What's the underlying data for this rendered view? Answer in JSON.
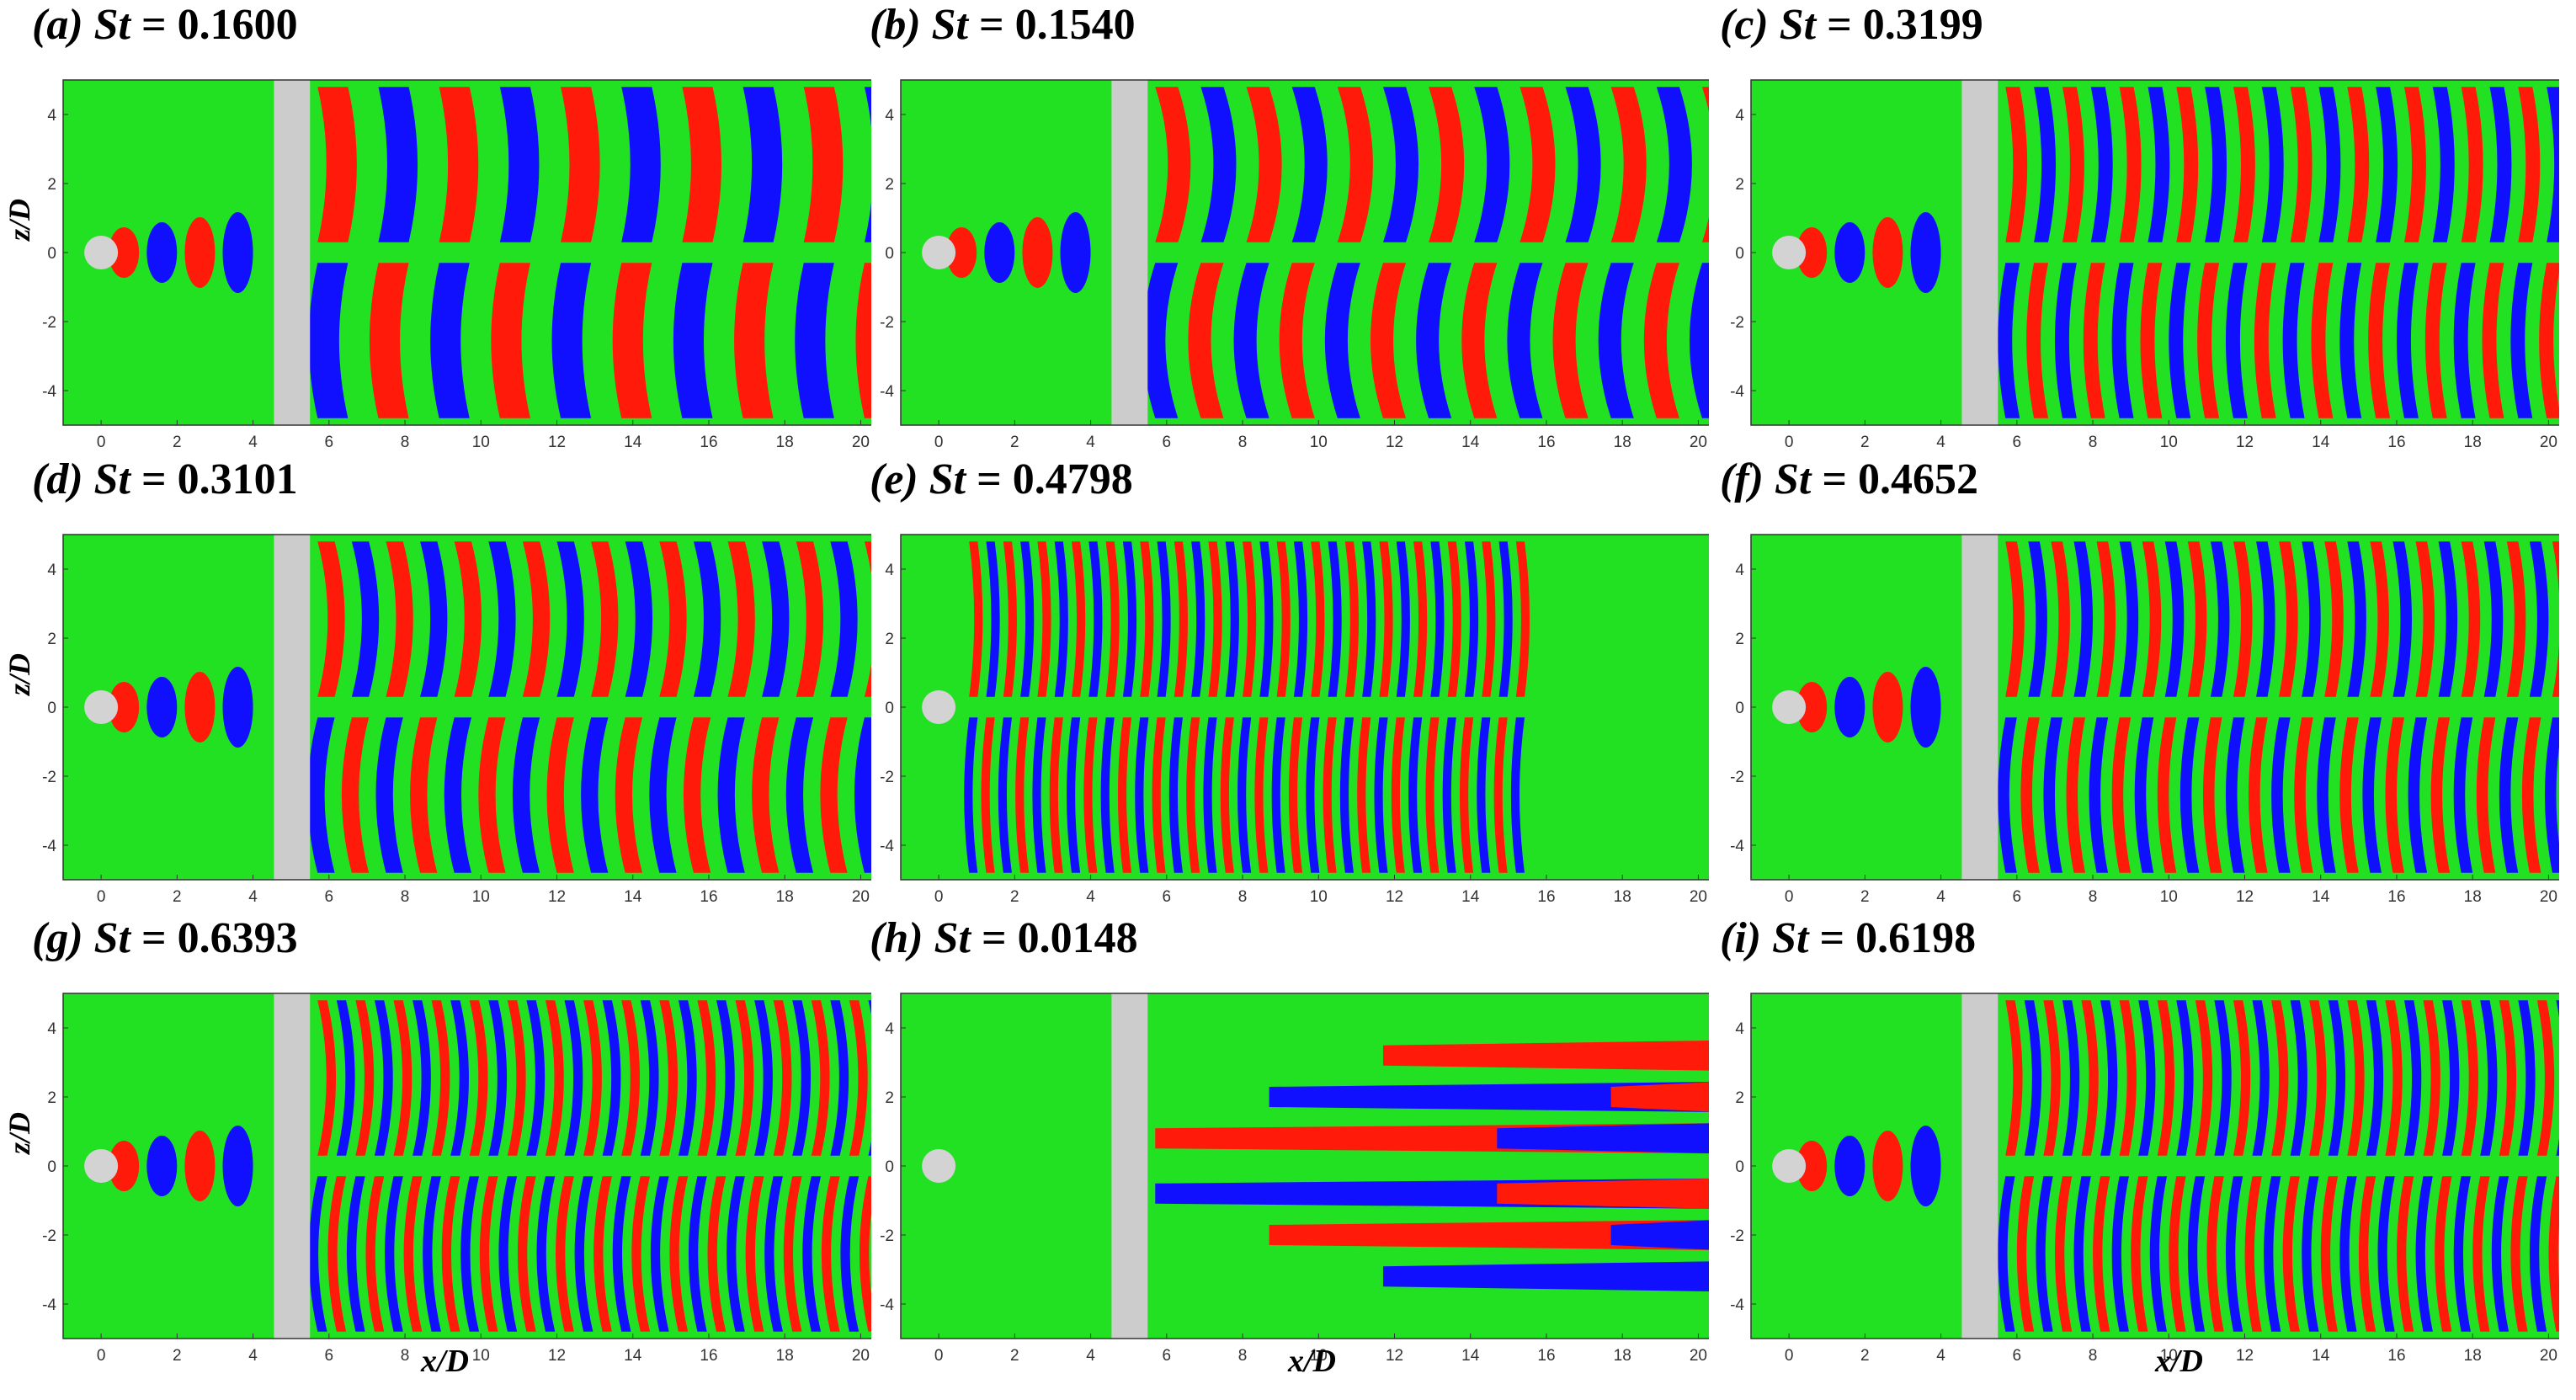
{
  "axis_labels": {
    "x": "x/D",
    "y": "z/D"
  },
  "x_ticks": [
    "0",
    "2",
    "4",
    "6",
    "8",
    "10",
    "12",
    "14",
    "16",
    "18",
    "20"
  ],
  "y_ticks": [
    "4",
    "2",
    "0",
    "-2",
    "-4"
  ],
  "panels": [
    {
      "label": "(a)",
      "st_symbol": "St",
      "eq": " = ",
      "value": "0.1600"
    },
    {
      "label": "(b)",
      "st_symbol": "St",
      "eq": " = ",
      "value": "0.1540"
    },
    {
      "label": "(c)",
      "st_symbol": "St",
      "eq": " = ",
      "value": "0.3199"
    },
    {
      "label": "(d)",
      "st_symbol": "St",
      "eq": " = ",
      "value": "0.3101"
    },
    {
      "label": "(e)",
      "st_symbol": "St",
      "eq": " = ",
      "value": "0.4798"
    },
    {
      "label": "(f)",
      "st_symbol": "St",
      "eq": " = ",
      "value": "0.4652"
    },
    {
      "label": "(g)",
      "st_symbol": "St",
      "eq": " = ",
      "value": "0.6393"
    },
    {
      "label": "(h)",
      "st_symbol": "St",
      "eq": " = ",
      "value": "0.0148"
    },
    {
      "label": "(i)",
      "st_symbol": "St",
      "eq": " = ",
      "value": "0.6198"
    }
  ],
  "colors": {
    "background": "#22e022",
    "positive": "#ff1a0a",
    "negative": "#1010ff",
    "obstacle": "#cccccc",
    "cylinder": "#d3d3d3"
  }
}
